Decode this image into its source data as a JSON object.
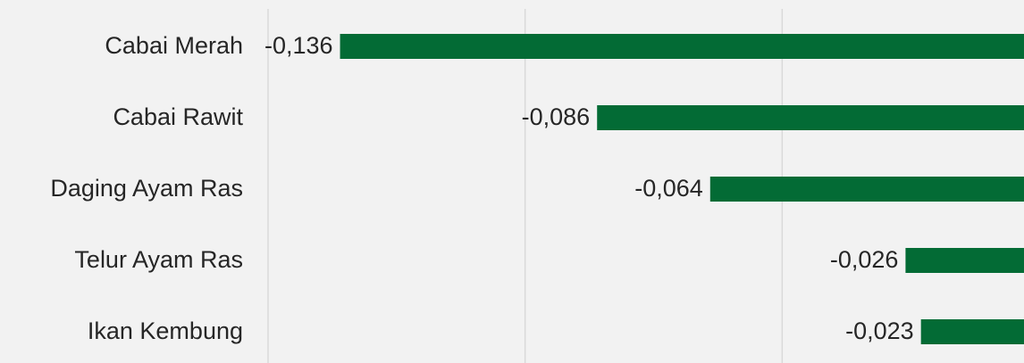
{
  "chart_data": {
    "type": "bar",
    "orientation": "horizontal",
    "categories": [
      "Cabai Merah",
      "Cabai Rawit",
      "Daging Ayam Ras",
      "Telur Ayam Ras",
      "Ikan Kembung"
    ],
    "values": [
      -0.136,
      -0.086,
      -0.064,
      -0.026,
      -0.023
    ],
    "value_labels": [
      "-0,136",
      "-0,086",
      "-0,064",
      "-0,026",
      "-0,023"
    ],
    "color": "#036b35",
    "xlim": [
      -0.15,
      0
    ],
    "xticks": [
      -0.15,
      -0.1,
      -0.05,
      0
    ],
    "grid": true
  }
}
